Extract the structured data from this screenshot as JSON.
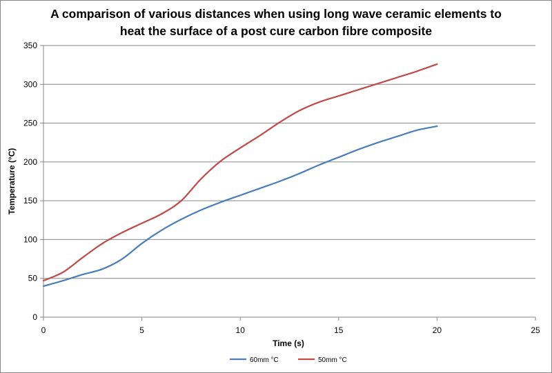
{
  "chart_data": {
    "type": "line",
    "title_line1": "A comparison of various distances when using long wave ceramic elements to",
    "title_line2": "heat the surface of a post cure carbon fibre composite",
    "xlabel": "Time (s)",
    "ylabel": "Temperature (°C)",
    "xlim": [
      0,
      25
    ],
    "ylim": [
      0,
      350
    ],
    "xticks": [
      0,
      5,
      10,
      15,
      20,
      25
    ],
    "yticks": [
      0,
      50,
      100,
      150,
      200,
      250,
      300,
      350
    ],
    "grid": "horizontal",
    "legend_position": "bottom",
    "series": [
      {
        "name": "60mm °C",
        "color": "#4a7ebb",
        "x": [
          0,
          1,
          2,
          3,
          4,
          5,
          6,
          7,
          8,
          9,
          10,
          11,
          12,
          13,
          14,
          15,
          16,
          17,
          18,
          19,
          20
        ],
        "y": [
          40,
          47,
          55,
          62,
          75,
          95,
          112,
          126,
          138,
          148,
          157,
          166,
          175,
          185,
          196,
          206,
          216,
          225,
          233,
          241,
          246
        ]
      },
      {
        "name": "50mm °C",
        "color": "#be4b48",
        "x": [
          0,
          1,
          2,
          3,
          4,
          5,
          6,
          7,
          8,
          9,
          10,
          11,
          12,
          13,
          14,
          15,
          16,
          17,
          18,
          19,
          20
        ],
        "y": [
          47,
          58,
          77,
          95,
          109,
          121,
          133,
          150,
          178,
          201,
          218,
          234,
          251,
          266,
          277,
          285,
          293,
          301,
          309,
          317,
          326
        ]
      }
    ]
  }
}
